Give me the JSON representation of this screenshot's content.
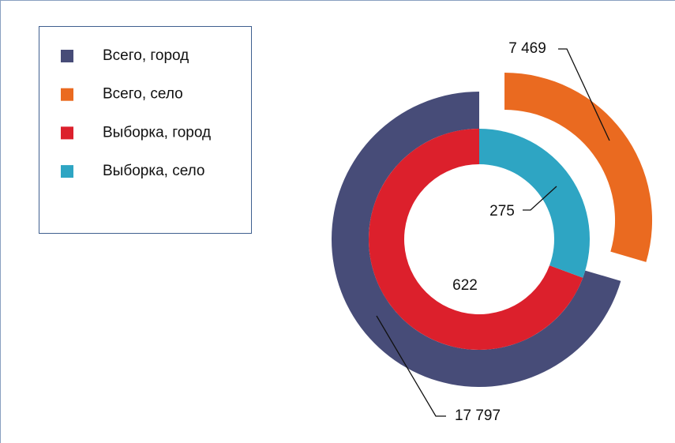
{
  "chart_data": {
    "type": "donut",
    "rings": [
      {
        "names": [
          "Всего, город",
          "Всего, село"
        ],
        "colors": [
          "#474c78",
          "#ea6a20"
        ],
        "values": [
          17797,
          7469
        ],
        "value_labels": [
          "17 797",
          "7 469"
        ],
        "explode": [
          false,
          true
        ]
      },
      {
        "names": [
          "Выборка, город",
          "Выборка, село"
        ],
        "colors": [
          "#dc202c",
          "#2ea5c3"
        ],
        "values": [
          622,
          275
        ],
        "value_labels": [
          "622",
          "275"
        ],
        "explode": [
          false,
          false
        ]
      }
    ]
  }
}
